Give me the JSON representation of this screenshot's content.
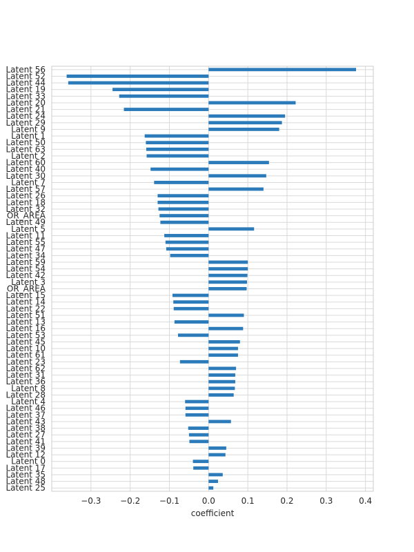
{
  "chart_data": {
    "type": "bar",
    "orientation": "horizontal",
    "xlabel": "coefficient",
    "ylabel": "",
    "title": "",
    "grid": true,
    "xlim": [
      -0.4,
      0.42
    ],
    "x_ticks": [
      -0.3,
      -0.2,
      -0.1,
      0.0,
      0.1,
      0.2,
      0.3,
      0.4
    ],
    "x_tick_labels": [
      "−0.3",
      "−0.2",
      "−0.1",
      "0.0",
      "0.1",
      "0.2",
      "0.3",
      "0.4"
    ],
    "bar_color": "#2b7bba",
    "categories": [
      "Latent 56",
      "Latent 52",
      "Latent 44",
      "Latent 19",
      "Latent 33",
      "Latent 20",
      "Latent 21",
      "Latent 24",
      "Latent 29",
      "Latent 9",
      "Latent 1",
      "Latent 50",
      "Latent 63",
      "Latent 2",
      "Latent 60",
      "Latent 40",
      "Latent 30",
      "Latent 7",
      "Latent 57",
      "Latent 26",
      "Latent 18",
      "Latent 32",
      "OR_AREA",
      "Latent 49",
      "Latent 5",
      "Latent 11",
      "Latent 55",
      "Latent 47",
      "Latent 34",
      "Latent 59",
      "Latent 54",
      "Latent 42",
      "Latent 3",
      "OR_AREA",
      "Latent 15",
      "Latent 14",
      "Latent 22",
      "Latent 51",
      "Latent 13",
      "Latent 16",
      "Latent 53",
      "Latent 45",
      "Latent 10",
      "Latent 61",
      "Latent 23",
      "Latent 62",
      "Latent 31",
      "Latent 36",
      "Latent 8",
      "Latent 28",
      "Latent 4",
      "Latent 46",
      "Latent 37",
      "Latent 43",
      "Latent 38",
      "Latent 27",
      "Latent 41",
      "Latent 39",
      "Latent 12",
      "Latent 0",
      "Latent 17",
      "Latent 35",
      "Latent 48",
      "Latent 25"
    ],
    "values": [
      0.376,
      -0.362,
      -0.358,
      -0.245,
      -0.228,
      0.222,
      -0.216,
      0.195,
      0.187,
      0.18,
      -0.163,
      -0.16,
      -0.159,
      -0.158,
      0.154,
      -0.148,
      0.147,
      -0.139,
      0.14,
      -0.13,
      -0.13,
      -0.128,
      -0.125,
      -0.123,
      0.116,
      -0.113,
      -0.11,
      -0.108,
      -0.098,
      0.1,
      0.1,
      0.099,
      0.098,
      0.097,
      -0.092,
      -0.09,
      -0.089,
      0.09,
      -0.087,
      0.088,
      -0.078,
      0.08,
      0.075,
      0.075,
      -0.073,
      0.07,
      0.068,
      0.068,
      0.067,
      0.064,
      -0.06,
      -0.059,
      -0.059,
      0.057,
      -0.052,
      -0.05,
      -0.049,
      0.045,
      0.043,
      -0.04,
      -0.039,
      0.036,
      0.024,
      0.012
    ]
  }
}
